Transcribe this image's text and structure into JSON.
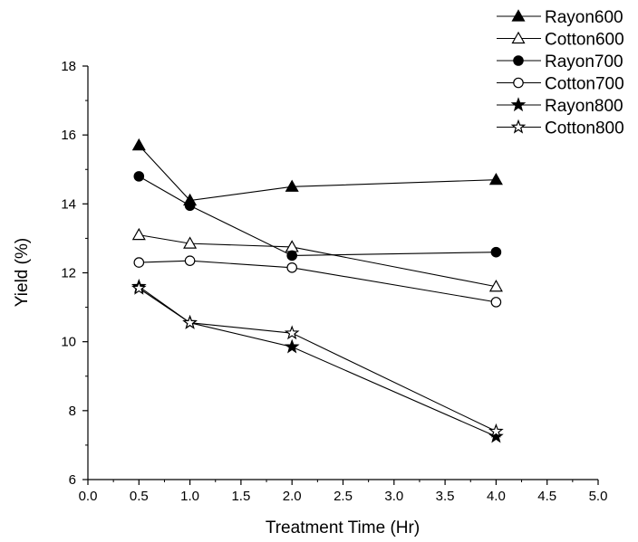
{
  "chart_data": {
    "type": "line",
    "title": "",
    "xlabel": "Treatment Time (Hr)",
    "ylabel": "Yield (%)",
    "xlim": [
      0.0,
      5.0
    ],
    "ylim": [
      6,
      18
    ],
    "xticks": [
      "0.0",
      "0.5",
      "1.0",
      "1.5",
      "2.0",
      "2.5",
      "3.0",
      "3.5",
      "4.0",
      "4.5",
      "5.0"
    ],
    "yticks": [
      "6",
      "8",
      "10",
      "12",
      "14",
      "16",
      "18"
    ],
    "grid": false,
    "legend_position": "top-right",
    "x": [
      0.5,
      1.0,
      2.0,
      4.0
    ],
    "series": [
      {
        "name": "Rayon600",
        "marker": "triangle-filled",
        "values": [
          15.7,
          14.1,
          14.5,
          14.7
        ]
      },
      {
        "name": "Cotton600",
        "marker": "triangle-open",
        "values": [
          13.1,
          12.85,
          12.75,
          11.6
        ]
      },
      {
        "name": "Rayon700",
        "marker": "circle-filled",
        "values": [
          14.8,
          13.95,
          12.5,
          12.6
        ]
      },
      {
        "name": "Cotton700",
        "marker": "circle-open",
        "values": [
          12.3,
          12.35,
          12.15,
          11.15
        ]
      },
      {
        "name": "Rayon800",
        "marker": "star-filled",
        "values": [
          11.6,
          10.55,
          9.85,
          7.25
        ]
      },
      {
        "name": "Cotton800",
        "marker": "star-open",
        "values": [
          11.55,
          10.55,
          10.25,
          7.4
        ]
      }
    ],
    "colors": {
      "line": "#000000",
      "marker": "#000000",
      "background": "#ffffff"
    }
  }
}
